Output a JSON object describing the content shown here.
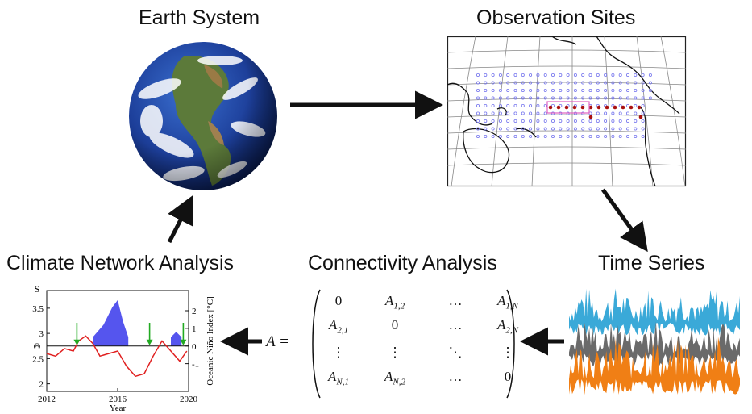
{
  "titles": {
    "earth": "Earth System",
    "sites": "Observation Sites",
    "climate": "Climate Network Analysis",
    "connectivity": "Connectivity Analysis",
    "timeseries": "Time Series"
  },
  "matrix": {
    "lhs": "A =",
    "row1": [
      "0",
      "A1,2",
      "…",
      "A1,N"
    ],
    "row2": [
      "A2,1",
      "0",
      "…",
      "A2,N"
    ],
    "row3": [
      "⋮",
      "⋮",
      "⋱",
      "⋮"
    ],
    "row4": [
      "AN,1",
      "AN,2",
      "…",
      "0"
    ]
  },
  "chart_data": {
    "type": "line",
    "xlabel": "Year",
    "ylabel_left": "S",
    "ylabel_right": "Oceanic Niño Index [°C]",
    "theta_label": "Θ",
    "x_ticks": [
      "2012",
      "2016",
      "2020"
    ],
    "y_left_ticks": [
      "2",
      "2.5",
      "3",
      "3.5"
    ],
    "y_right_ticks": [
      "-1",
      "0",
      "1",
      "2"
    ],
    "xlim": [
      2012,
      2020
    ],
    "ylim_left": [
      1.85,
      3.85
    ],
    "threshold_theta": 2.75,
    "colors": {
      "s_curve": "#e02020",
      "oni_fill": "#5555ee",
      "warning": "#22aa22"
    },
    "series": [
      {
        "name": "S",
        "x": [
          2012.0,
          2012.5,
          2013.0,
          2013.5,
          2013.8,
          2014.2,
          2014.6,
          2015.0,
          2015.5,
          2016.0,
          2016.5,
          2017.0,
          2017.5,
          2018.0,
          2018.5,
          2019.0,
          2019.5,
          2019.9
        ],
        "y": [
          2.6,
          2.55,
          2.7,
          2.65,
          2.85,
          2.95,
          2.8,
          2.55,
          2.6,
          2.65,
          2.35,
          2.15,
          2.2,
          2.55,
          2.85,
          2.65,
          2.45,
          2.65
        ]
      },
      {
        "name": "Oceanic Niño Index",
        "x": [
          2014.6,
          2015.2,
          2015.7,
          2016.0,
          2016.3,
          2016.6,
          2019.0,
          2019.3,
          2019.6
        ],
        "y": [
          0.5,
          1.2,
          2.2,
          2.6,
          1.4,
          0.5,
          0.5,
          0.8,
          0.5
        ]
      }
    ],
    "warnings_x": [
      2013.7,
      2017.8,
      2019.7
    ]
  }
}
